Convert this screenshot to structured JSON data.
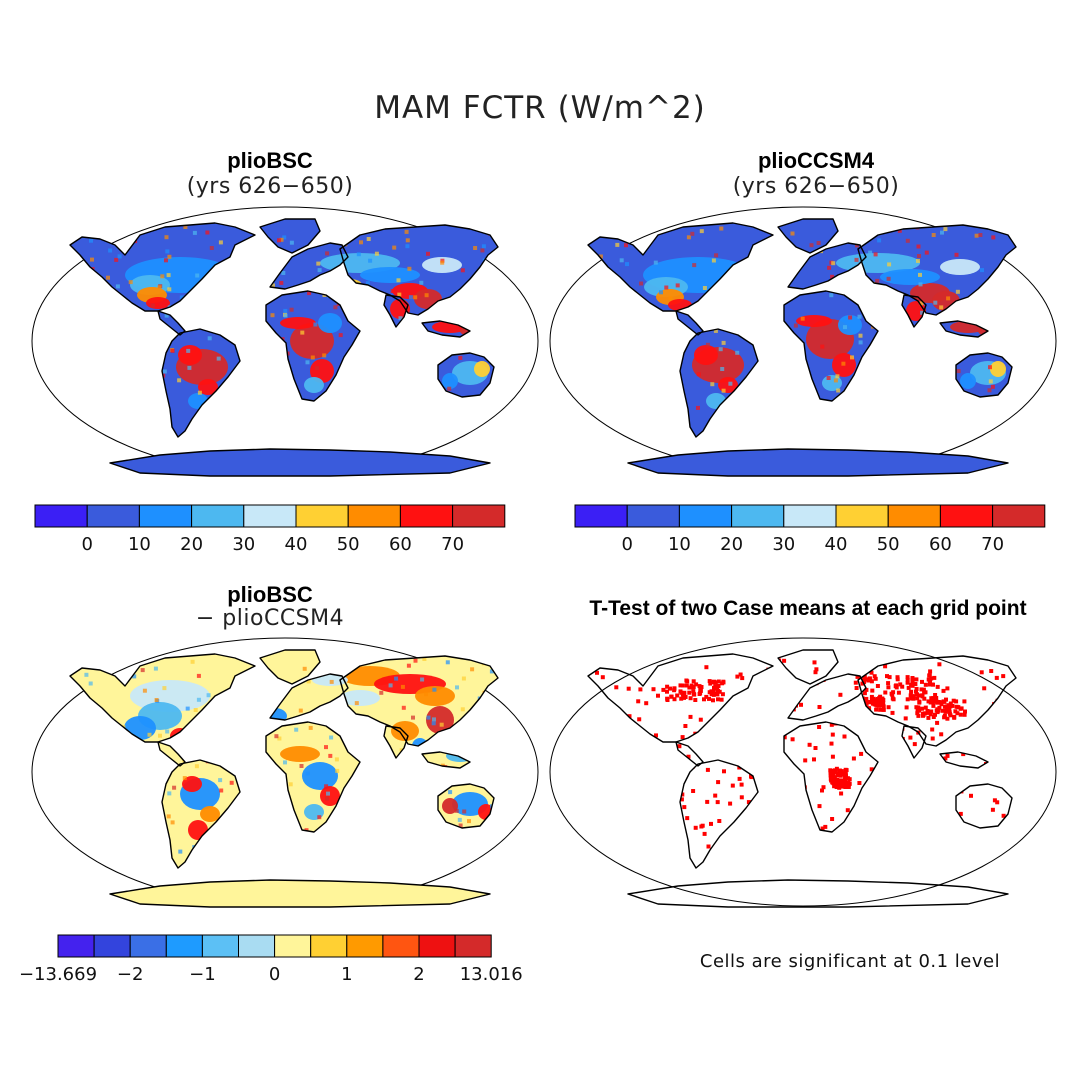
{
  "figure": {
    "main_title": "MAM FCTR (W/m^2)"
  },
  "panels": [
    {
      "id": "bsc",
      "title": "plioBSC",
      "subtitle": "(yrs 626−650)",
      "type": "absolute field map"
    },
    {
      "id": "ccsm4",
      "title": "plioCCSM4",
      "subtitle": "(yrs 626−650)",
      "type": "absolute field map"
    },
    {
      "id": "diff",
      "title": "plioBSC",
      "subtitle": "− plioCCSM4",
      "type": "difference map"
    },
    {
      "id": "ttest",
      "title": "T-Test of two Case means at each grid point",
      "type": "significance map",
      "note": "Cells are significant at 0.1 level",
      "significant_color": "#ff0000"
    }
  ],
  "colorbars": {
    "absolute": {
      "colors": [
        "#3b1ff5",
        "#3a5bdc",
        "#1e90ff",
        "#4db8f0",
        "#c8e8f8",
        "#ffd033",
        "#ff8c00",
        "#ff1111",
        "#d42a2a"
      ],
      "labels": [
        "0",
        "10",
        "20",
        "30",
        "40",
        "50",
        "60",
        "70"
      ]
    },
    "difference": {
      "colors": [
        "#4422ee",
        "#3344dd",
        "#3a6fe6",
        "#1e9bff",
        "#5cc0f5",
        "#a9dcf2",
        "#fff59a",
        "#ffd033",
        "#ff9a00",
        "#ff5511",
        "#ee1111",
        "#d42a2a"
      ],
      "labels": [
        "−13.669",
        "−2",
        "−1",
        "0",
        "1",
        "2",
        "13.016"
      ]
    }
  },
  "map_colors": {
    "land_outline": "#000000",
    "ocean": "#ffffff",
    "bsc_base": "#3a5bdc",
    "ccsm4_base": "#3a5bdc",
    "diff_base": "#fff59a",
    "tropics_hot": "#d42a2a",
    "warm": "#ff1111",
    "orange": "#ff8c00",
    "yellow": "#ffd033",
    "light": "#c8e8f8",
    "mid_blue": "#1e90ff",
    "light_blue": "#4db8f0"
  }
}
